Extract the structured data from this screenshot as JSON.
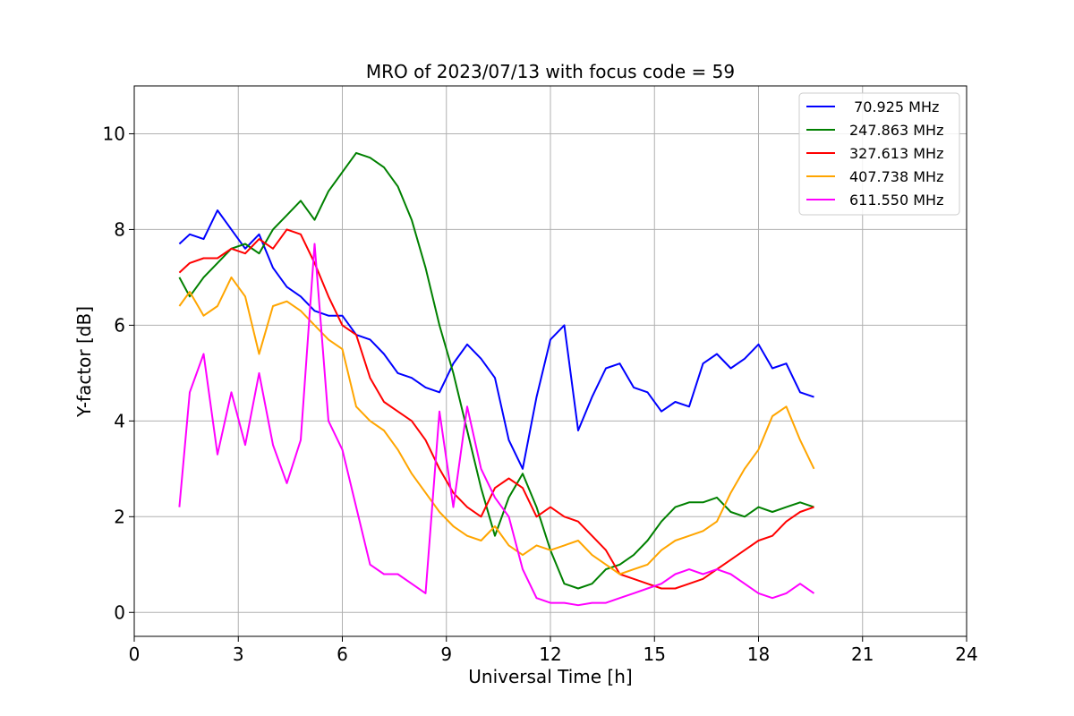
{
  "chart_data": {
    "type": "line",
    "title": "MRO of 2023/07/13 with focus code = 59",
    "xlabel": "Universal Time [h]",
    "ylabel": "Y-factor [dB]",
    "xlim": [
      0,
      24
    ],
    "ylim": [
      -0.5,
      11
    ],
    "xticks": [
      0,
      3,
      6,
      9,
      12,
      15,
      18,
      21,
      24
    ],
    "yticks": [
      0,
      2,
      4,
      6,
      8,
      10
    ],
    "grid": true,
    "legend_position": "top-right",
    "series": [
      {
        "name": " 70.925 MHz",
        "color": "#0000ff",
        "x": [
          1.3,
          1.6,
          2.0,
          2.4,
          2.8,
          3.2,
          3.6,
          4.0,
          4.4,
          4.8,
          5.2,
          5.6,
          6.0,
          6.4,
          6.8,
          7.2,
          7.6,
          8.0,
          8.4,
          8.8,
          9.2,
          9.6,
          10.0,
          10.4,
          10.8,
          11.2,
          11.6,
          12.0,
          12.4,
          12.8,
          13.2,
          13.6,
          14.0,
          14.4,
          14.8,
          15.2,
          15.6,
          16.0,
          16.4,
          16.8,
          17.2,
          17.6,
          18.0,
          18.4,
          18.8,
          19.2,
          19.6
        ],
        "y": [
          7.7,
          7.9,
          7.8,
          8.4,
          8.0,
          7.6,
          7.9,
          7.2,
          6.8,
          6.6,
          6.3,
          6.2,
          6.2,
          5.8,
          5.7,
          5.4,
          5.0,
          4.9,
          4.7,
          4.6,
          5.2,
          5.6,
          5.3,
          4.9,
          3.6,
          3.0,
          4.5,
          5.7,
          6.0,
          3.8,
          4.5,
          5.1,
          5.2,
          4.7,
          4.6,
          4.2,
          4.4,
          4.3,
          5.2,
          5.4,
          5.1,
          5.3,
          5.6,
          5.1,
          5.2,
          4.6,
          4.5
        ]
      },
      {
        "name": "247.863 MHz",
        "color": "#008000",
        "x": [
          1.3,
          1.6,
          2.0,
          2.4,
          2.8,
          3.2,
          3.6,
          4.0,
          4.4,
          4.8,
          5.2,
          5.6,
          6.0,
          6.4,
          6.8,
          7.2,
          7.6,
          8.0,
          8.4,
          8.8,
          9.2,
          9.6,
          10.0,
          10.4,
          10.8,
          11.2,
          11.6,
          12.0,
          12.4,
          12.8,
          13.2,
          13.6,
          14.0,
          14.4,
          14.8,
          15.2,
          15.6,
          16.0,
          16.4,
          16.8,
          17.2,
          17.6,
          18.0,
          18.4,
          18.8,
          19.2,
          19.6
        ],
        "y": [
          7.0,
          6.6,
          7.0,
          7.3,
          7.6,
          7.7,
          7.5,
          8.0,
          8.3,
          8.6,
          8.2,
          8.8,
          9.2,
          9.6,
          9.5,
          9.3,
          8.9,
          8.2,
          7.2,
          6.0,
          5.0,
          3.8,
          2.6,
          1.6,
          2.4,
          2.9,
          2.2,
          1.3,
          0.6,
          0.5,
          0.6,
          0.9,
          1.0,
          1.2,
          1.5,
          1.9,
          2.2,
          2.3,
          2.3,
          2.4,
          2.1,
          2.0,
          2.2,
          2.1,
          2.2,
          2.3,
          2.2
        ]
      },
      {
        "name": "327.613 MHz",
        "color": "#ff0000",
        "x": [
          1.3,
          1.6,
          2.0,
          2.4,
          2.8,
          3.2,
          3.6,
          4.0,
          4.4,
          4.8,
          5.2,
          5.6,
          6.0,
          6.4,
          6.8,
          7.2,
          7.6,
          8.0,
          8.4,
          8.8,
          9.2,
          9.6,
          10.0,
          10.4,
          10.8,
          11.2,
          11.6,
          12.0,
          12.4,
          12.8,
          13.2,
          13.6,
          14.0,
          14.4,
          14.8,
          15.2,
          15.6,
          16.0,
          16.4,
          16.8,
          17.2,
          17.6,
          18.0,
          18.4,
          18.8,
          19.2,
          19.6
        ],
        "y": [
          7.1,
          7.3,
          7.4,
          7.4,
          7.6,
          7.5,
          7.8,
          7.6,
          8.0,
          7.9,
          7.3,
          6.6,
          6.0,
          5.8,
          4.9,
          4.4,
          4.2,
          4.0,
          3.6,
          3.0,
          2.5,
          2.2,
          2.0,
          2.6,
          2.8,
          2.6,
          2.0,
          2.2,
          2.0,
          1.9,
          1.6,
          1.3,
          0.8,
          0.7,
          0.6,
          0.5,
          0.5,
          0.6,
          0.7,
          0.9,
          1.1,
          1.3,
          1.5,
          1.6,
          1.9,
          2.1,
          2.2
        ]
      },
      {
        "name": "407.738 MHz",
        "color": "#ffa500",
        "x": [
          1.3,
          1.6,
          2.0,
          2.4,
          2.8,
          3.2,
          3.6,
          4.0,
          4.4,
          4.8,
          5.2,
          5.6,
          6.0,
          6.4,
          6.8,
          7.2,
          7.6,
          8.0,
          8.4,
          8.8,
          9.2,
          9.6,
          10.0,
          10.4,
          10.8,
          11.2,
          11.6,
          12.0,
          12.4,
          12.8,
          13.2,
          13.6,
          14.0,
          14.4,
          14.8,
          15.2,
          15.6,
          16.0,
          16.4,
          16.8,
          17.2,
          17.6,
          18.0,
          18.4,
          18.8,
          19.2,
          19.6
        ],
        "y": [
          6.4,
          6.7,
          6.2,
          6.4,
          7.0,
          6.6,
          5.4,
          6.4,
          6.5,
          6.3,
          6.0,
          5.7,
          5.5,
          4.3,
          4.0,
          3.8,
          3.4,
          2.9,
          2.5,
          2.1,
          1.8,
          1.6,
          1.5,
          1.8,
          1.4,
          1.2,
          1.4,
          1.3,
          1.4,
          1.5,
          1.2,
          1.0,
          0.8,
          0.9,
          1.0,
          1.3,
          1.5,
          1.6,
          1.7,
          1.9,
          2.5,
          3.0,
          3.4,
          4.1,
          4.3,
          3.6,
          3.0
        ]
      },
      {
        "name": "611.550 MHz",
        "color": "#ff00ff",
        "x": [
          1.3,
          1.6,
          2.0,
          2.4,
          2.8,
          3.2,
          3.6,
          4.0,
          4.4,
          4.8,
          5.2,
          5.6,
          6.0,
          6.4,
          6.8,
          7.2,
          7.6,
          8.0,
          8.4,
          8.8,
          9.2,
          9.6,
          10.0,
          10.4,
          10.8,
          11.2,
          11.6,
          12.0,
          12.4,
          12.8,
          13.2,
          13.6,
          14.0,
          14.4,
          14.8,
          15.2,
          15.6,
          16.0,
          16.4,
          16.8,
          17.2,
          17.6,
          18.0,
          18.4,
          18.8,
          19.2,
          19.6
        ],
        "y": [
          2.2,
          4.6,
          5.4,
          3.3,
          4.6,
          3.5,
          5.0,
          3.5,
          2.7,
          3.6,
          7.7,
          4.0,
          3.4,
          2.2,
          1.0,
          0.8,
          0.8,
          0.6,
          0.4,
          4.2,
          2.2,
          4.3,
          3.0,
          2.4,
          2.0,
          0.9,
          0.3,
          0.2,
          0.2,
          0.15,
          0.2,
          0.2,
          0.3,
          0.4,
          0.5,
          0.6,
          0.8,
          0.9,
          0.8,
          0.9,
          0.8,
          0.6,
          0.4,
          0.3,
          0.4,
          0.6,
          0.4
        ]
      }
    ]
  }
}
